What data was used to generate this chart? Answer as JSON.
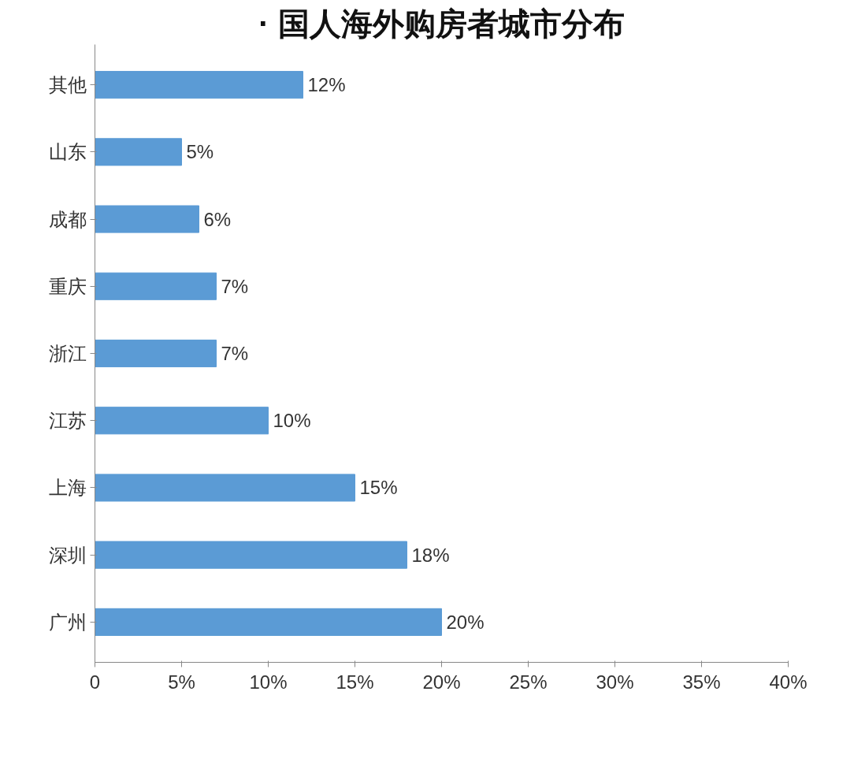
{
  "chart_data": {
    "type": "bar",
    "orientation": "horizontal",
    "title": "· 国人海外购房者城市分布",
    "categories": [
      "其他",
      "山东",
      "成都",
      "重庆",
      "浙江",
      "江苏",
      "上海",
      "深圳",
      "广州"
    ],
    "values": [
      12,
      5,
      6,
      7,
      7,
      10,
      15,
      18,
      20
    ],
    "value_labels": [
      "12%",
      "5%",
      "6%",
      "7%",
      "7%",
      "10%",
      "15%",
      "18%",
      "20%"
    ],
    "color": "#5b9bd5",
    "xlim": [
      0,
      40
    ],
    "xticks": [
      0,
      {
        "value": 5,
        "label": "5%"
      },
      {
        "value": 10,
        "label": "10%"
      },
      {
        "value": 15,
        "label": "15%"
      },
      {
        "value": 20,
        "label": "20%"
      },
      {
        "value": 25,
        "label": "25%"
      },
      {
        "value": 30,
        "label": "30%"
      },
      {
        "value": 35,
        "label": "35%"
      },
      {
        "value": 40,
        "label": "40%"
      }
    ],
    "grid": false
  }
}
